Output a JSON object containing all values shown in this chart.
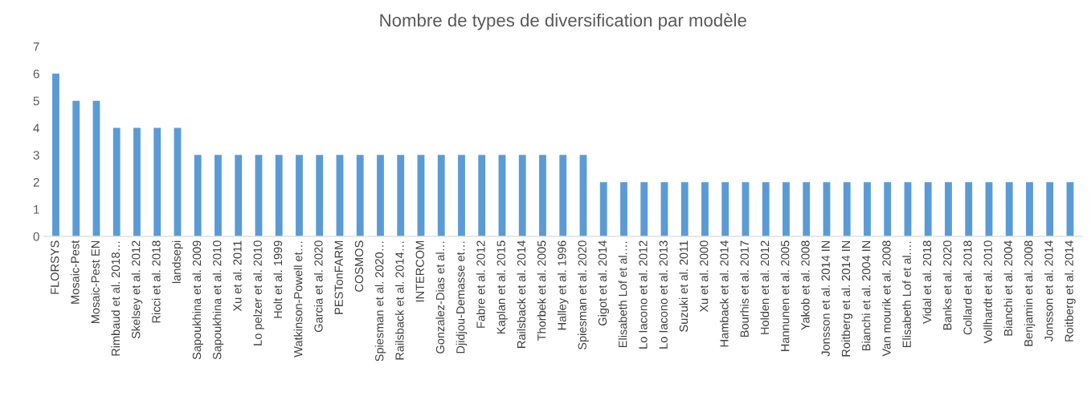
{
  "chart_data": {
    "type": "bar",
    "title": "Nombre de types de diversification par modèle",
    "categories": [
      "FLORSYS",
      "Mosaic-Pest",
      "Mosaic-Pest EN",
      "Rimbaud et al. 2018…",
      "Skelsey et al. 2012",
      "Ricci et al. 2018",
      "landsepi",
      "Sapoukhina et al. 2009",
      "Sapoukhina et al. 2010",
      "Xu et al. 2011",
      "Lo pelzer et al. 2010",
      "Holt et al. 1999",
      "Watkinson-Powell et…",
      "Garcia et al. 2020",
      "PESTonFARM",
      "COSMOS",
      "Spiesman et al. 2020…",
      "Railsback et al. 2014…",
      "INTERCOM",
      "Gonzalez-Dias et al…",
      "Djidjou-Demasse et…",
      "Fabre et al. 2012",
      "Kaplan et al. 2015",
      "Railsback et al. 2014",
      "Thorbek et al. 2005",
      "Halley et al. 1996",
      "Spiesman et al. 2020",
      "Gigot et al. 2014",
      "Elisabeth Lof et al.…",
      "Lo Iacono et al. 2012",
      "Lo Iacono et al. 2013",
      "Suzuki et al. 2011",
      "Xu et al. 2000",
      "Hamback et al. 2014",
      "Bourhis et al. 2017",
      "Holden et al. 2012",
      "Hannunen et al. 2005",
      "Yakob et al. 2008",
      "Jonsson et al. 2014 IN",
      "Roitberg et al. 2014 IN",
      "Bianchi et al. 2004 IN",
      "Van mourik et al. 2008",
      "Elisabeth Lof et al.…",
      "Vidal et al. 2018",
      "Banks et al. 2020",
      "Collard et al. 2018",
      "Vollhardt et al. 2010",
      "Bianchi et al. 2004",
      "Benjamin et al. 2008",
      "Jonsson et al. 2014",
      "Roitberg et al. 2014"
    ],
    "values": [
      6,
      5,
      5,
      4,
      4,
      4,
      4,
      3,
      3,
      3,
      3,
      3,
      3,
      3,
      3,
      3,
      3,
      3,
      3,
      3,
      3,
      3,
      3,
      3,
      3,
      3,
      3,
      2,
      2,
      2,
      2,
      2,
      2,
      2,
      2,
      2,
      2,
      2,
      2,
      2,
      2,
      2,
      2,
      2,
      2,
      2,
      2,
      2,
      2,
      2,
      2
    ],
    "color": "#5b9bd5",
    "ylim": [
      0,
      7
    ],
    "yticks": [
      0,
      1,
      2,
      3,
      4,
      5,
      6,
      7
    ],
    "grid": false,
    "legend": false
  }
}
